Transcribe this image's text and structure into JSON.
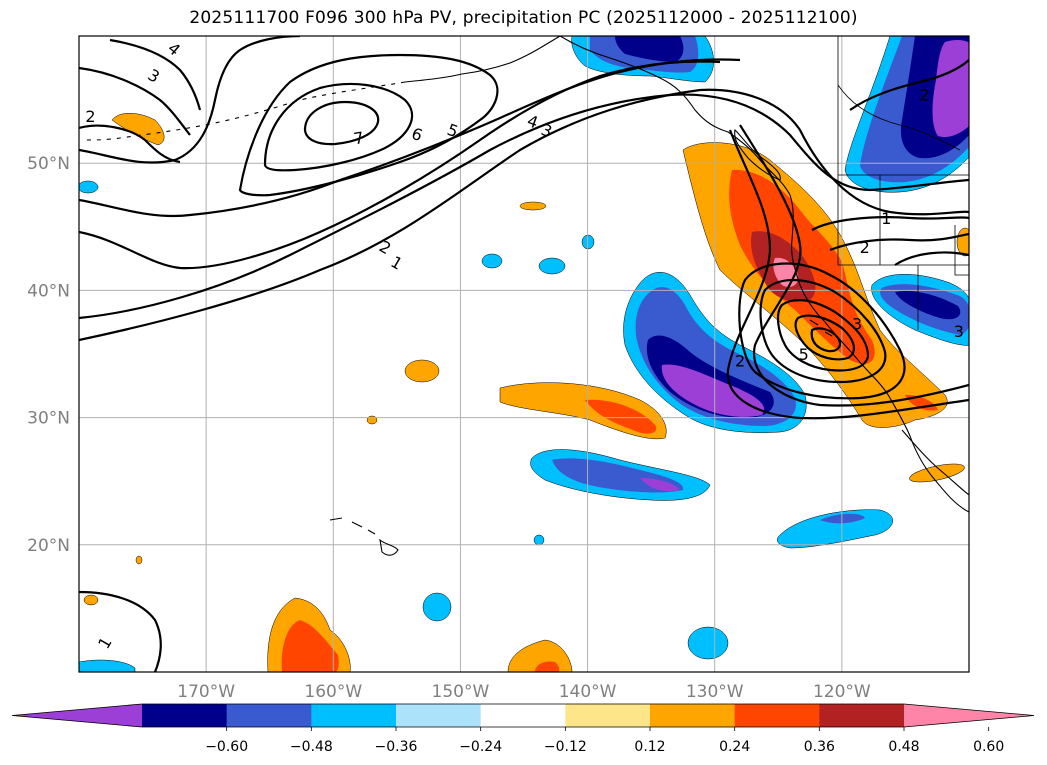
{
  "title": "2025111700 F096 300 hPa PV, precipitation PC (2025112000 - 2025112100)",
  "map": {
    "lon_range": [
      -180,
      -110
    ],
    "lat_range": [
      10,
      60
    ],
    "gridline_color": "#b0b0b0",
    "coastline_color": "#000000"
  },
  "axes": {
    "lon_ticks": [
      {
        "lon": -170,
        "label": "170°W"
      },
      {
        "lon": -160,
        "label": "160°W"
      },
      {
        "lon": -150,
        "label": "150°W"
      },
      {
        "lon": -140,
        "label": "140°W"
      },
      {
        "lon": -130,
        "label": "130°W"
      },
      {
        "lon": -120,
        "label": "120°W"
      }
    ],
    "lat_ticks": [
      {
        "lat": 20,
        "label": "20°N"
      },
      {
        "lat": 30,
        "label": "30°N"
      },
      {
        "lat": 40,
        "label": "40°N"
      },
      {
        "lat": 50,
        "label": "50°N"
      }
    ]
  },
  "colorbar": {
    "labels": [
      "−0.60",
      "−0.48",
      "−0.36",
      "−0.24",
      "−0.12",
      "0.12",
      "0.24",
      "0.36",
      "0.48",
      "0.60"
    ],
    "colors": [
      "#9b3fd6",
      "#00008b",
      "#3a5bd0",
      "#00bfff",
      "#ade2fb",
      "#ffffff",
      "#fde68a",
      "#ffa500",
      "#ff4500",
      "#b22222",
      "#ff85a8"
    ]
  },
  "pv_contour_labels": [
    {
      "text": "3",
      "lon": -174.1,
      "lat": 56.9,
      "rot": 30
    },
    {
      "text": "4",
      "lon": -172.5,
      "lat": 59.0,
      "rot": 40
    },
    {
      "text": "2",
      "lon": -179.1,
      "lat": 53.7,
      "rot": 0
    },
    {
      "text": "7",
      "lon": -158.0,
      "lat": 52.0,
      "rot": -10
    },
    {
      "text": "6",
      "lon": -153.4,
      "lat": 52.3,
      "rot": 20
    },
    {
      "text": "5",
      "lon": -150.6,
      "lat": 52.6,
      "rot": 20
    },
    {
      "text": "4",
      "lon": -144.3,
      "lat": 53.3,
      "rot": 20
    },
    {
      "text": "3",
      "lon": -143.2,
      "lat": 52.6,
      "rot": 20
    },
    {
      "text": "2",
      "lon": -155.9,
      "lat": 43.4,
      "rot": 30
    },
    {
      "text": "1",
      "lon": -155.0,
      "lat": 42.2,
      "rot": 30
    },
    {
      "text": "1",
      "lon": -178.0,
      "lat": 12.3,
      "rot": -60
    },
    {
      "text": "5",
      "lon": -123.0,
      "lat": 35.0,
      "rot": 0
    },
    {
      "text": "2",
      "lon": -128.0,
      "lat": 34.5,
      "rot": 0
    },
    {
      "text": "3",
      "lon": -118.8,
      "lat": 37.4,
      "rot": 0
    },
    {
      "text": "2",
      "lon": -118.2,
      "lat": 43.4,
      "rot": 0
    },
    {
      "text": "1",
      "lon": -116.5,
      "lat": 45.7,
      "rot": 0
    },
    {
      "text": "3",
      "lon": -110.8,
      "lat": 36.8,
      "rot": 0
    },
    {
      "text": "2",
      "lon": -113.5,
      "lat": 55.4,
      "rot": 0
    }
  ]
}
